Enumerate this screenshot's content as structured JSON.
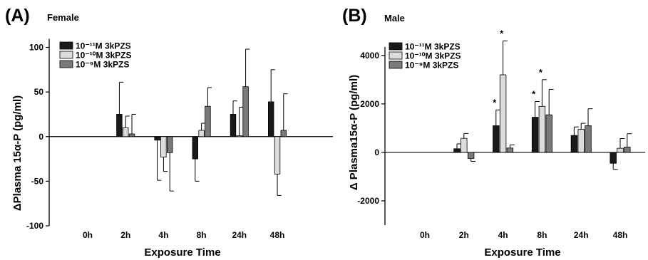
{
  "chart_data": [
    {
      "type": "bar",
      "panel_label": "(A)",
      "title": "Female",
      "xlabel": "Exposure Time",
      "ylabel": "ΔPlasma 15α-P (pg/ml)",
      "ylim": [
        -100,
        110
      ],
      "yticks": [
        "-100",
        "-50",
        "0",
        "50",
        "100"
      ],
      "yticks_values": [
        -100,
        -50,
        0,
        50,
        100
      ],
      "categories": [
        "0h",
        "2h",
        "4h",
        "8h",
        "24h",
        "48h"
      ],
      "legend_position": "top-left",
      "series": [
        {
          "name": "10⁻¹¹M 3kPZS",
          "color": "#1a1a1a",
          "values": [
            null,
            25,
            -4,
            -25,
            25,
            39
          ],
          "errors": [
            null,
            36,
            45,
            25,
            15,
            36
          ]
        },
        {
          "name": "10⁻¹⁰M 3kPZS",
          "color": "#dcdcdc",
          "values": [
            null,
            10,
            -23,
            7,
            1,
            -42
          ],
          "errors": [
            null,
            13,
            16,
            8,
            32,
            24
          ]
        },
        {
          "name": "10⁻⁹M 3kPZS",
          "color": "#7a7a7a",
          "values": [
            null,
            3,
            -18,
            34,
            56,
            7
          ],
          "errors": [
            null,
            22,
            43,
            21,
            42,
            41
          ]
        }
      ],
      "significance": [
        [],
        [],
        [],
        [],
        [],
        []
      ]
    },
    {
      "type": "bar",
      "panel_label": "(B)",
      "title": "Male",
      "xlabel": "Exposure Time",
      "ylabel": "Δ Plasma15α-P (pg/ml)",
      "ylim": [
        -3000,
        4700
      ],
      "yticks": [
        "-2000",
        "0",
        "2000",
        "4000"
      ],
      "yticks_values": [
        -2000,
        0,
        2000,
        4000
      ],
      "categories": [
        "0h",
        "2h",
        "4h",
        "8h",
        "24h",
        "48h"
      ],
      "legend_position": "top-left",
      "series": [
        {
          "name": "10⁻¹¹M 3kPZS",
          "color": "#1a1a1a",
          "values": [
            null,
            150,
            1100,
            1450,
            700,
            -450
          ],
          "errors": [
            null,
            200,
            650,
            650,
            350,
            250
          ]
        },
        {
          "name": "10⁻¹⁰M 3kPZS",
          "color": "#dcdcdc",
          "values": [
            null,
            580,
            3200,
            1900,
            950,
            170
          ],
          "errors": [
            null,
            200,
            1400,
            1100,
            250,
            400
          ]
        },
        {
          "name": "10⁻⁹M 3kPZS",
          "color": "#7a7a7a",
          "values": [
            null,
            -250,
            180,
            1550,
            1100,
            220
          ],
          "errors": [
            null,
            120,
            130,
            1050,
            700,
            550
          ]
        }
      ],
      "significance": [
        [],
        [],
        [
          "*",
          "*",
          ""
        ],
        [
          "*",
          "*",
          ""
        ],
        [],
        []
      ]
    }
  ]
}
